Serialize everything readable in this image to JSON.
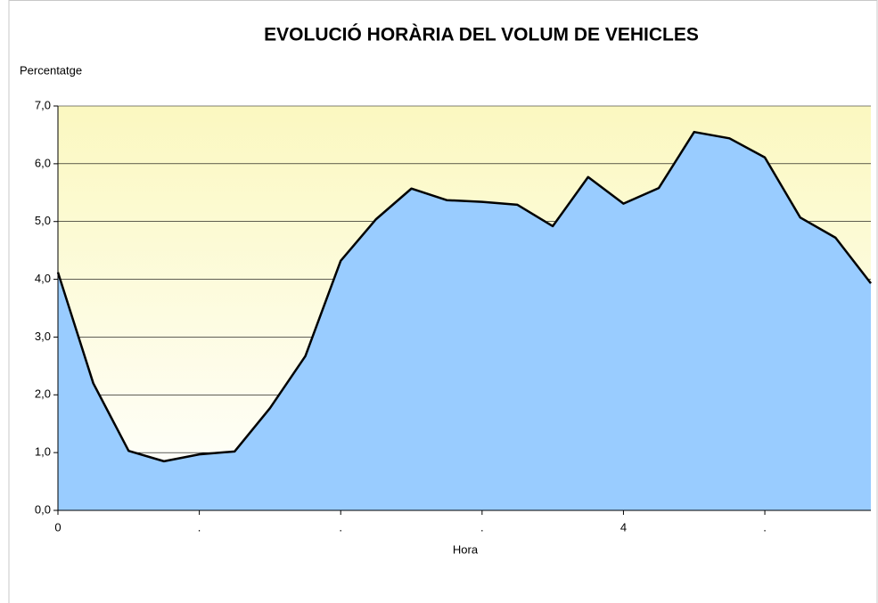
{
  "chart_data": {
    "type": "area",
    "title": "EVOLUCIÓ HORÀRIA DEL VOLUM DE VEHICLES",
    "y_axis_label": "Percentatge",
    "x_axis_label": "Hora",
    "categories": [
      "0",
      null,
      null,
      null,
      ".",
      null,
      null,
      null,
      ".",
      null,
      null,
      null,
      ".",
      null,
      null,
      null,
      "4",
      null,
      null,
      null,
      ".",
      null,
      null,
      null
    ],
    "values": [
      4.12,
      2.2,
      1.03,
      0.85,
      0.97,
      1.02,
      1.77,
      2.67,
      4.32,
      5.04,
      5.57,
      5.37,
      5.34,
      5.29,
      4.92,
      5.77,
      5.31,
      5.58,
      6.55,
      6.44,
      6.11,
      5.07,
      4.72,
      3.93
    ],
    "color": "#99ccff",
    "ylim": [
      0,
      7
    ],
    "yticks": [
      {
        "value": 0,
        "label": "0,0"
      },
      {
        "value": 1,
        "label": "1,0"
      },
      {
        "value": 2,
        "label": "2,0"
      },
      {
        "value": 3,
        "label": "3,0"
      },
      {
        "value": 4,
        "label": "4,0"
      },
      {
        "value": 5,
        "label": "5,0"
      },
      {
        "value": 6,
        "label": "6,0"
      },
      {
        "value": 7,
        "label": "7,0"
      }
    ],
    "grid": true
  }
}
